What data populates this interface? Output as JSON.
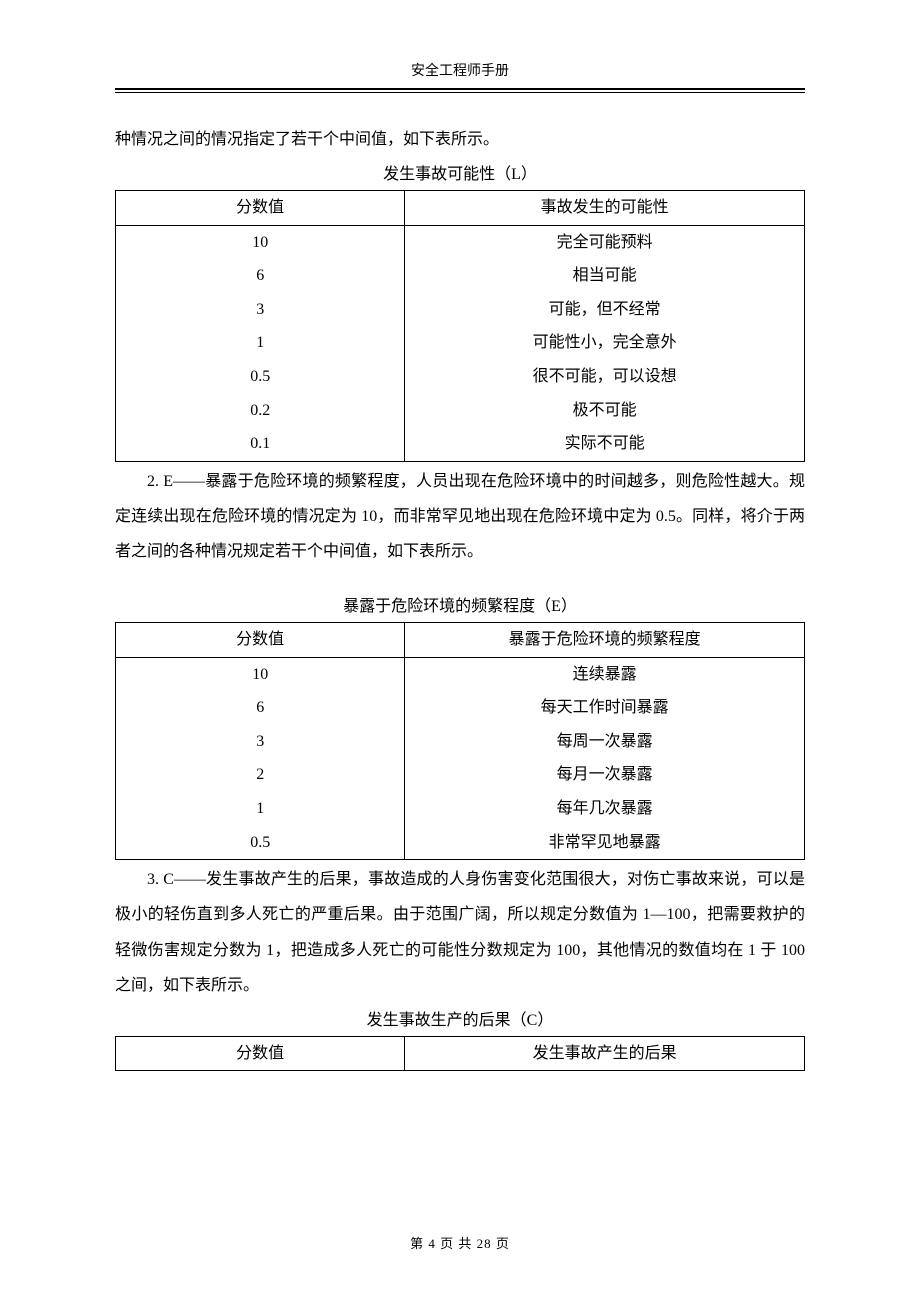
{
  "header": {
    "title": "安全工程师手册"
  },
  "para1": "种情况之间的情况指定了若干个中间值，如下表所示。",
  "table1": {
    "caption": "发生事故可能性（L）",
    "headers": [
      "分数值",
      "事故发生的可能性"
    ],
    "rows": [
      [
        "10",
        "完全可能预料"
      ],
      [
        "6",
        "相当可能"
      ],
      [
        "3",
        "可能，但不经常"
      ],
      [
        "1",
        "可能性小，完全意外"
      ],
      [
        "0.5",
        "很不可能，可以设想"
      ],
      [
        "0.2",
        "极不可能"
      ],
      [
        "0.1",
        "实际不可能"
      ]
    ]
  },
  "para2": "2. E——暴露于危险环境的频繁程度，人员出现在危险环境中的时间越多，则危险性越大。规定连续出现在危险环境的情况定为 10，而非常罕见地出现在危险环境中定为 0.5。同样，将介于两者之间的各种情况规定若干个中间值，如下表所示。",
  "table2": {
    "caption": "暴露于危险环境的频繁程度（E）",
    "headers": [
      "分数值",
      "暴露于危险环境的频繁程度"
    ],
    "rows": [
      [
        "10",
        "连续暴露"
      ],
      [
        "6",
        "每天工作时间暴露"
      ],
      [
        "3",
        "每周一次暴露"
      ],
      [
        "2",
        "每月一次暴露"
      ],
      [
        "1",
        "每年几次暴露"
      ],
      [
        "0.5",
        "非常罕见地暴露"
      ]
    ]
  },
  "para3": "3. C——发生事故产生的后果，事故造成的人身伤害变化范围很大，对伤亡事故来说，可以是极小的轻伤直到多人死亡的严重后果。由于范围广阔，所以规定分数值为 1—100，把需要救护的轻微伤害规定分数为 1，把造成多人死亡的可能性分数规定为 100，其他情况的数值均在 1 于 100 之间，如下表所示。",
  "table3": {
    "caption": "发生事故生产的后果（C）",
    "headers": [
      "分数值",
      "发生事故产生的后果"
    ]
  },
  "footer": {
    "prefix": "第 ",
    "page": "4",
    "mid": " 页 共 ",
    "total": "28",
    "suffix": " 页"
  }
}
